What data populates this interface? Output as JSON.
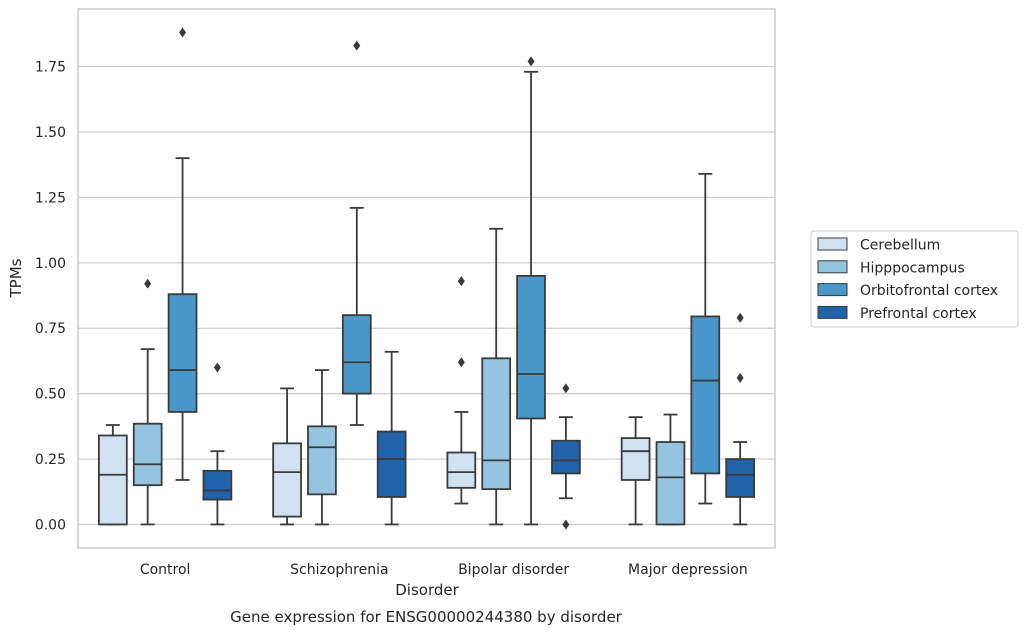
{
  "caption": "Gene expression for ENSG00000244380 by disorder",
  "chart_data": {
    "type": "box",
    "title": "",
    "xlabel": "Disorder",
    "ylabel": "TPMs",
    "ylim": [
      -0.09,
      1.97
    ],
    "yticks": [
      0.0,
      0.25,
      0.5,
      0.75,
      1.0,
      1.25,
      1.5,
      1.75
    ],
    "ytick_labels": [
      "0.00",
      "0.25",
      "0.50",
      "0.75",
      "1.00",
      "1.25",
      "1.50",
      "1.75"
    ],
    "grid": "horizontal",
    "legend_position": "right",
    "categories": [
      "Control",
      "Schizophrenia",
      "Bipolar disorder",
      "Major depression"
    ],
    "series": [
      {
        "name": "Cerebellum",
        "color": "#d0e1f2",
        "boxes": [
          {
            "whislo": 0.0,
            "q1": 0.0,
            "med": 0.19,
            "q3": 0.34,
            "whishi": 0.38,
            "fliers": []
          },
          {
            "whislo": 0.0,
            "q1": 0.03,
            "med": 0.2,
            "q3": 0.31,
            "whishi": 0.52,
            "fliers": []
          },
          {
            "whislo": 0.08,
            "q1": 0.14,
            "med": 0.2,
            "q3": 0.275,
            "whishi": 0.43,
            "fliers": [
              0.62,
              0.93
            ]
          },
          {
            "whislo": 0.0,
            "q1": 0.17,
            "med": 0.28,
            "q3": 0.33,
            "whishi": 0.41,
            "fliers": []
          }
        ]
      },
      {
        "name": "Hipppocampus",
        "color": "#94c4df",
        "boxes": [
          {
            "whislo": 0.0,
            "q1": 0.15,
            "med": 0.23,
            "q3": 0.385,
            "whishi": 0.67,
            "fliers": [
              0.92
            ]
          },
          {
            "whislo": 0.0,
            "q1": 0.115,
            "med": 0.295,
            "q3": 0.375,
            "whishi": 0.59,
            "fliers": []
          },
          {
            "whislo": 0.0,
            "q1": 0.135,
            "med": 0.245,
            "q3": 0.635,
            "whishi": 1.13,
            "fliers": []
          },
          {
            "whislo": 0.0,
            "q1": 0.0,
            "med": 0.18,
            "q3": 0.315,
            "whishi": 0.42,
            "fliers": []
          }
        ]
      },
      {
        "name": "Orbitofrontal cortex",
        "color": "#4a98c9",
        "boxes": [
          {
            "whislo": 0.17,
            "q1": 0.43,
            "med": 0.59,
            "q3": 0.88,
            "whishi": 1.4,
            "fliers": [
              1.88
            ]
          },
          {
            "whislo": 0.38,
            "q1": 0.5,
            "med": 0.62,
            "q3": 0.8,
            "whishi": 1.21,
            "fliers": [
              1.83
            ]
          },
          {
            "whislo": 0.0,
            "q1": 0.405,
            "med": 0.575,
            "q3": 0.95,
            "whishi": 1.73,
            "fliers": [
              1.77
            ]
          },
          {
            "whislo": 0.08,
            "q1": 0.195,
            "med": 0.55,
            "q3": 0.795,
            "whishi": 1.34,
            "fliers": []
          }
        ]
      },
      {
        "name": "Prefrontal cortex",
        "color": "#2163aa",
        "boxes": [
          {
            "whislo": 0.0,
            "q1": 0.095,
            "med": 0.13,
            "q3": 0.205,
            "whishi": 0.28,
            "fliers": [
              0.6
            ]
          },
          {
            "whislo": 0.0,
            "q1": 0.105,
            "med": 0.25,
            "q3": 0.355,
            "whishi": 0.66,
            "fliers": []
          },
          {
            "whislo": 0.1,
            "q1": 0.195,
            "med": 0.245,
            "q3": 0.32,
            "whishi": 0.41,
            "fliers": [
              0.52,
              0.0
            ]
          },
          {
            "whislo": 0.0,
            "q1": 0.105,
            "med": 0.19,
            "q3": 0.25,
            "whishi": 0.315,
            "fliers": [
              0.56,
              0.79
            ]
          }
        ]
      }
    ]
  }
}
